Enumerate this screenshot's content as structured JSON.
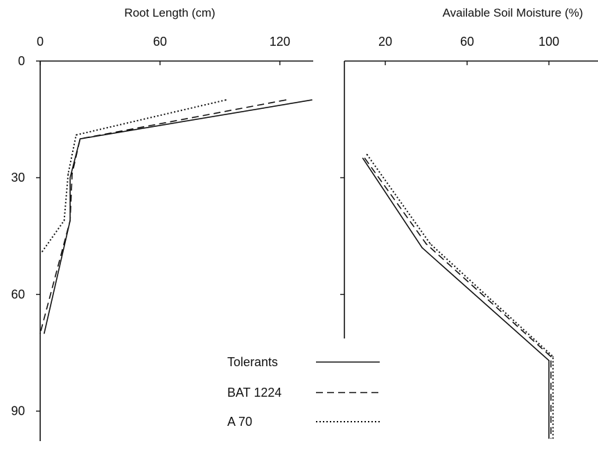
{
  "chart_data": [
    {
      "type": "line",
      "title": "",
      "xlabel": "Root Length (cm)",
      "ylabel": "",
      "x_ticks": [
        "0",
        "60",
        "120"
      ],
      "y_ticks": [
        "0",
        "30",
        "60",
        "90"
      ],
      "xlim": [
        0,
        136
      ],
      "ylim": [
        0,
        97
      ],
      "y_inverted": true,
      "grid": false,
      "series": [
        {
          "name": "Tolerants",
          "style": "solid",
          "x": [
            136,
            20,
            15,
            15,
            2
          ],
          "y": [
            10,
            20,
            30,
            41,
            70
          ]
        },
        {
          "name": "BAT 1224",
          "style": "dashed",
          "x": [
            123,
            20,
            16,
            15,
            0
          ],
          "y": [
            10,
            20,
            29,
            41,
            70
          ]
        },
        {
          "name": "A 70",
          "style": "dotted",
          "x": [
            93,
            18,
            14,
            12,
            1
          ],
          "y": [
            10,
            19,
            29,
            41,
            49
          ]
        }
      ]
    },
    {
      "type": "line",
      "title": "",
      "xlabel": "Available Soil Moisture (%)",
      "ylabel": "",
      "x_ticks": [
        "20",
        "60",
        "100"
      ],
      "y_ticks": [],
      "xlim": [
        0,
        124
      ],
      "ylim": [
        0,
        97
      ],
      "y_inverted": true,
      "grid": false,
      "series": [
        {
          "name": "Tolerants",
          "style": "solid",
          "x": [
            9,
            38,
            100,
            100
          ],
          "y": [
            25,
            48,
            77,
            97
          ]
        },
        {
          "name": "BAT 1224",
          "style": "dashed",
          "x": [
            10,
            40,
            101,
            101
          ],
          "y": [
            25,
            47,
            76,
            97
          ]
        },
        {
          "name": "A 70",
          "style": "dotted",
          "x": [
            11,
            42,
            102,
            102
          ],
          "y": [
            24,
            47,
            76,
            97
          ]
        }
      ]
    }
  ],
  "legend": {
    "placement": "bottom-center",
    "items": [
      {
        "label": "Tolerants",
        "style": "solid"
      },
      {
        "label": "BAT 1224",
        "style": "dashed"
      },
      {
        "label": "A 70",
        "style": "dotted"
      }
    ]
  },
  "colors": {
    "ink": "#111111",
    "background": "#ffffff"
  }
}
